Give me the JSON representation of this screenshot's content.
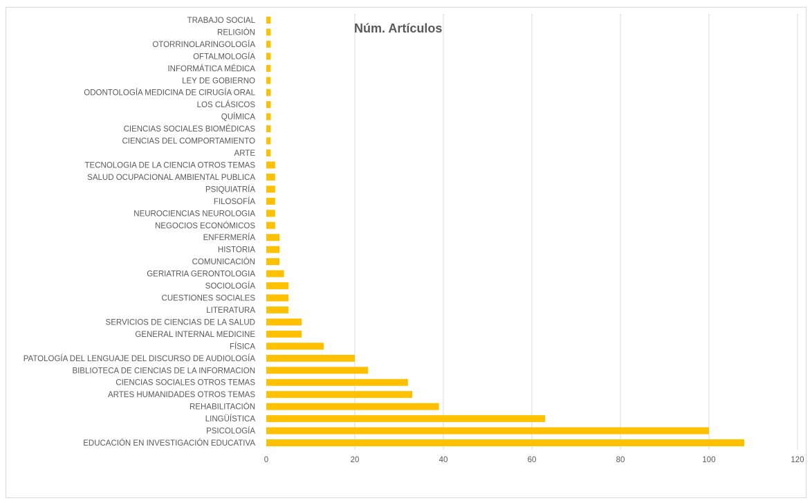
{
  "chart_data": {
    "type": "bar",
    "orientation": "horizontal",
    "title": "Núm. Artículos",
    "xlabel": "",
    "ylabel": "",
    "xlim": [
      0,
      120
    ],
    "x_ticks": [
      0,
      20,
      40,
      60,
      80,
      100,
      120
    ],
    "grid": "vertical",
    "legend": "none",
    "bar_color": "#FFC000",
    "categories": [
      "TRABAJO SOCIAL",
      "RELIGIÓN",
      "OTORRINOLARINGOLOGÍA",
      "OFTALMOLOGÍA",
      "INFORMÁTICA MÉDICA",
      "LEY DE GOBIERNO",
      "ODONTOLOGÍA MEDICINA DE CIRUGÍA ORAL",
      "LOS CLÁSICOS",
      "QUÍMICA",
      "CIENCIAS SOCIALES BIOMÉDICAS",
      "CIENCIAS DEL COMPORTAMIENTO",
      "ARTE",
      "TECNOLOGIA DE LA CIENCIA OTROS TEMAS",
      "SALUD OCUPACIONAL AMBIENTAL PUBLICA",
      "PSIQUIATRÍA",
      "FILOSOFÍA",
      "NEUROCIENCIAS NEUROLOGIA",
      "NEGOCIOS ECONÓMICOS",
      "ENFERMERÍA",
      "HISTORIA",
      "COMUNICACIÓN",
      "GERIATRIA GERONTOLOGIA",
      "SOCIOLOGÍA",
      "CUESTIONES SOCIALES",
      "LITERATURA",
      "SERVICIOS DE CIENCIAS DE LA SALUD",
      "GENERAL INTERNAL MEDICINE",
      "FÍSICA",
      "PATOLOGÍA DEL LENGUAJE DEL DISCURSO DE AUDIOLOGÍA",
      "BIBLIOTECA DE CIENCIAS DE LA INFORMACION",
      "CIENCIAS SOCIALES OTROS TEMAS",
      "ARTES HUMANIDADES OTROS TEMAS",
      "REHABILITACIÓN",
      "LINGÜÍSTICA",
      "PSICOLOGÍA",
      "EDUCACIÓN EN INVESTIGACIÓN EDUCATIVA"
    ],
    "values": [
      1,
      1,
      1,
      1,
      1,
      1,
      1,
      1,
      1,
      1,
      1,
      1,
      2,
      2,
      2,
      2,
      2,
      2,
      3,
      3,
      3,
      4,
      5,
      5,
      5,
      8,
      8,
      13,
      20,
      23,
      32,
      33,
      39,
      63,
      100,
      108
    ]
  }
}
